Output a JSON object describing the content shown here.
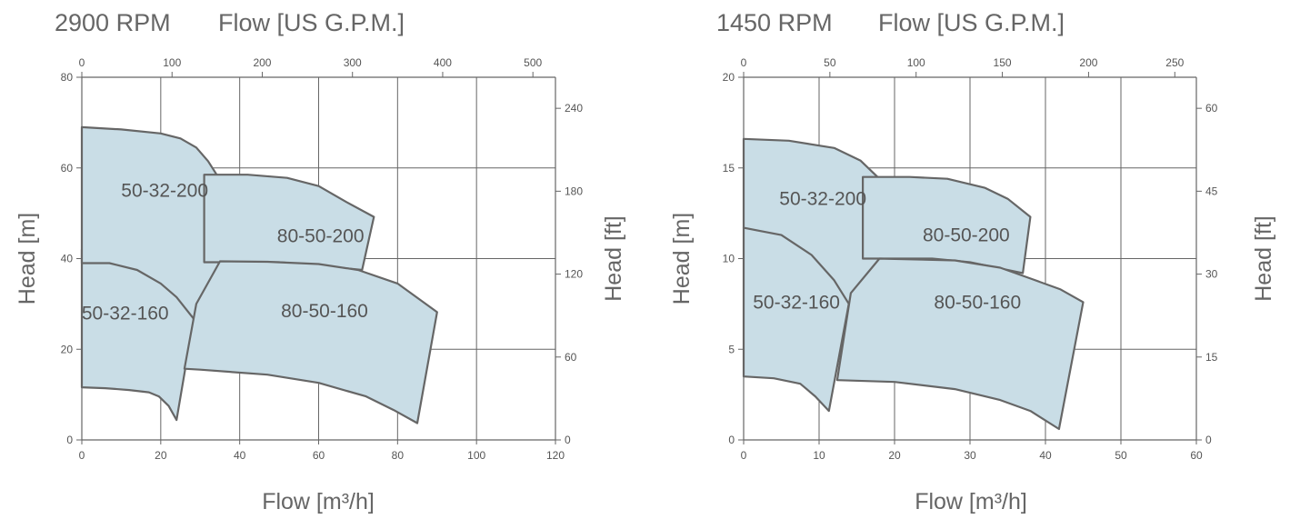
{
  "chart_data": [
    {
      "type": "area",
      "speed_label": "2900 RPM",
      "top_axis_title": "Flow [US G.P.M.]",
      "xlabel": "Flow [m³/h]",
      "ylabel": "Head [m]",
      "y2label": "Head [ft]",
      "xlim": [
        0,
        120
      ],
      "ylim": [
        0,
        80
      ],
      "x_ticks": [
        0,
        20,
        40,
        60,
        80,
        100,
        120
      ],
      "y_ticks": [
        0,
        20,
        40,
        60,
        80
      ],
      "top_ticks": [
        0,
        100,
        200,
        300,
        400,
        500
      ],
      "right_ticks": [
        0,
        60,
        120,
        180,
        240
      ],
      "grid": true,
      "series": [
        {
          "name": "50-32-160",
          "label_at": [
            11,
            28
          ],
          "x": [
            0,
            6,
            12,
            17,
            19.5,
            22,
            24,
            29,
            26,
            20,
            12,
            5,
            0
          ],
          "y": [
            11.6,
            11.4,
            11.0,
            10.5,
            9.6,
            7.5,
            4.4,
            30,
            36,
            40,
            41.6,
            42,
            42
          ],
          "points": [
            [
              0,
              11.6
            ],
            [
              6,
              11.4
            ],
            [
              12,
              11.0
            ],
            [
              17,
              10.5
            ],
            [
              19.5,
              9.6
            ],
            [
              22,
              7.5
            ],
            [
              24,
              4.4
            ],
            [
              29,
              30
            ],
            [
              26,
              36
            ],
            [
              20,
              40
            ],
            [
              12,
              41.6
            ],
            [
              5,
              42
            ],
            [
              0,
              42
            ]
          ]
        },
        {
          "name": "50-32-200",
          "label_at": [
            21,
            55
          ],
          "points": [
            [
              0,
              69
            ],
            [
              10,
              68.5
            ],
            [
              20,
              67.6
            ],
            [
              25,
              66.5
            ],
            [
              29,
              64.5
            ],
            [
              32,
              61.5
            ],
            [
              36,
              56
            ],
            [
              39,
              56
            ],
            [
              32,
              22.5
            ],
            [
              29,
              26
            ],
            [
              24,
              31.5
            ],
            [
              20,
              34.5
            ],
            [
              14,
              37.5
            ],
            [
              7,
              39
            ],
            [
              0,
              39
            ]
          ]
        },
        {
          "name": "80-50-200",
          "label_at": [
            60.5,
            45
          ],
          "points": [
            [
              31,
              58.5
            ],
            [
              42,
              58.5
            ],
            [
              52,
              57.8
            ],
            [
              60,
              56
            ],
            [
              67,
              52.5
            ],
            [
              74,
              49.2
            ],
            [
              71,
              37.5
            ],
            [
              60,
              38.5
            ],
            [
              50,
              39.2
            ],
            [
              36,
              39.2
            ],
            [
              31,
              39.2
            ]
          ]
        },
        {
          "name": "80-50-160",
          "label_at": [
            61.5,
            28.5
          ],
          "points": [
            [
              29,
              30
            ],
            [
              35,
              39.4
            ],
            [
              47,
              39.3
            ],
            [
              60,
              38.8
            ],
            [
              70,
              37.5
            ],
            [
              80,
              34.5
            ],
            [
              90,
              28.2
            ],
            [
              85,
              3.7
            ],
            [
              79,
              6.6
            ],
            [
              72,
              9.6
            ],
            [
              60,
              12.6
            ],
            [
              47,
              14.4
            ],
            [
              30,
              15.5
            ],
            [
              26,
              15.7
            ]
          ]
        }
      ]
    },
    {
      "type": "area",
      "speed_label": "1450 RPM",
      "top_axis_title": "Flow [US G.P.M.]",
      "xlabel": "Flow [m³/h]",
      "ylabel": "Head [m]",
      "y2label": "Head [ft]",
      "xlim": [
        0,
        60
      ],
      "ylim": [
        0,
        20
      ],
      "x_ticks": [
        0,
        10,
        20,
        30,
        40,
        50,
        60
      ],
      "y_ticks": [
        0,
        5,
        10,
        15,
        20
      ],
      "top_ticks": [
        0,
        50,
        100,
        150,
        200,
        250
      ],
      "right_ticks": [
        0,
        15,
        30,
        45,
        60
      ],
      "grid": true,
      "series": [
        {
          "name": "50-32-160",
          "label_at": [
            7,
            7.6
          ],
          "points": [
            [
              0,
              3.5
            ],
            [
              4,
              3.4
            ],
            [
              7.5,
              3.1
            ],
            [
              9.5,
              2.4
            ],
            [
              11.3,
              1.6
            ],
            [
              14.2,
              8.1
            ],
            [
              13,
              9.2
            ],
            [
              11,
              10.4
            ],
            [
              8,
              11.2
            ],
            [
              4,
              11.6
            ],
            [
              0,
              11.7
            ]
          ]
        },
        {
          "name": "50-32-200",
          "label_at": [
            10.5,
            13.3
          ],
          "points": [
            [
              0,
              16.6
            ],
            [
              6,
              16.5
            ],
            [
              12,
              16.1
            ],
            [
              15.5,
              15.4
            ],
            [
              18,
              14.4
            ],
            [
              20,
              13.4
            ],
            [
              16.5,
              5.6
            ],
            [
              15,
              6.8
            ],
            [
              12,
              8.8
            ],
            [
              9,
              10.2
            ],
            [
              5,
              11.3
            ],
            [
              0,
              11.7
            ]
          ]
        },
        {
          "name": "80-50-200",
          "label_at": [
            29.5,
            11.3
          ],
          "points": [
            [
              15.8,
              14.5
            ],
            [
              22,
              14.5
            ],
            [
              27,
              14.4
            ],
            [
              32,
              13.9
            ],
            [
              35,
              13.3
            ],
            [
              38,
              12.3
            ],
            [
              37,
              9.2
            ],
            [
              30,
              9.8
            ],
            [
              25,
              10.0
            ],
            [
              18,
              10.0
            ],
            [
              15.8,
              10.0
            ]
          ]
        },
        {
          "name": "80-50-160",
          "label_at": [
            31,
            7.6
          ],
          "points": [
            [
              14.2,
              8.1
            ],
            [
              18,
              10.0
            ],
            [
              28,
              9.9
            ],
            [
              34,
              9.5
            ],
            [
              38,
              8.9
            ],
            [
              42,
              8.3
            ],
            [
              45,
              7.6
            ],
            [
              41.8,
              0.6
            ],
            [
              38,
              1.6
            ],
            [
              34,
              2.2
            ],
            [
              28,
              2.8
            ],
            [
              20,
              3.2
            ],
            [
              12.4,
              3.3
            ]
          ]
        }
      ]
    }
  ]
}
